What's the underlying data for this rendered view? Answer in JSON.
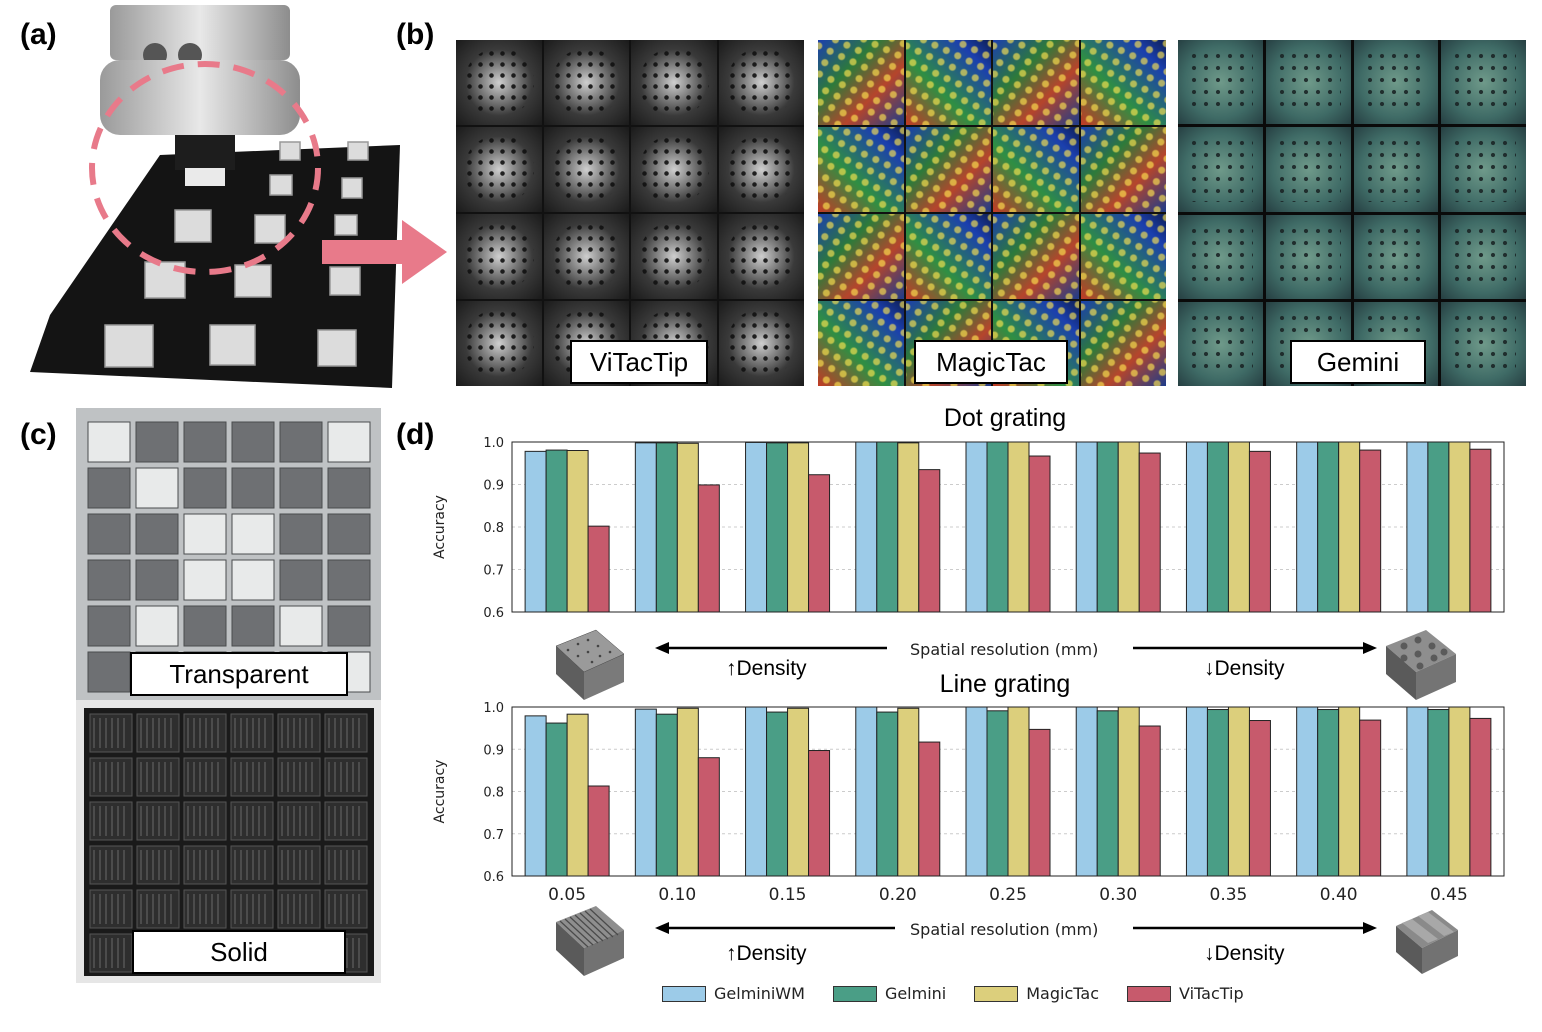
{
  "figure": {
    "panel_a": {
      "letter": "(a)"
    },
    "panel_b": {
      "letter": "(b)",
      "sensor_labels": [
        "ViTacTip",
        "MagicTac",
        "Gemini"
      ]
    },
    "panel_c": {
      "letter": "(c)",
      "top_label": "Transparent",
      "bottom_label": "Solid"
    },
    "panel_d": {
      "letter": "(d)"
    },
    "colors": {
      "GelminiWM": "#9ccbe8",
      "Gelmini": "#4a9e86",
      "MagicTac": "#dccf7c",
      "ViTacTip": "#c75a6c",
      "pink_accent": "#e87a8a"
    },
    "icons": [
      "robot-gripper-photo-icon",
      "arrow-right-icon",
      "dot-grating-sample-icon",
      "line-grating-sample-icon"
    ]
  },
  "chart_data": [
    {
      "type": "bar",
      "title": "Dot grating",
      "categories": [
        "0.05",
        "0.10",
        "0.15",
        "0.20",
        "0.25",
        "0.30",
        "0.35",
        "0.40",
        "0.45"
      ],
      "series": [
        {
          "name": "GelminiWM",
          "values": [
            0.978,
            0.998,
            0.999,
            1.0,
            1.0,
            1.0,
            1.0,
            1.0,
            1.0
          ]
        },
        {
          "name": "Gelmini",
          "values": [
            0.981,
            0.998,
            0.998,
            1.0,
            1.0,
            1.0,
            1.0,
            1.0,
            1.0
          ]
        },
        {
          "name": "MagicTac",
          "values": [
            0.98,
            0.997,
            0.998,
            0.998,
            1.0,
            1.0,
            1.0,
            1.0,
            1.0
          ]
        },
        {
          "name": "ViTacTip",
          "values": [
            0.802,
            0.899,
            0.923,
            0.935,
            0.967,
            0.974,
            0.978,
            0.981,
            0.983
          ]
        }
      ],
      "xlabel": "Spatial resolution (mm)",
      "ylabel": "Accuracy",
      "ylim": [
        0.6,
        1.0
      ],
      "yticks": [
        "0.6",
        "0.7",
        "0.8",
        "0.9",
        "1.0"
      ],
      "grid": true,
      "density_left": "↑Density",
      "density_right": "↓Density"
    },
    {
      "type": "bar",
      "title": "Line grating",
      "categories": [
        "0.05",
        "0.10",
        "0.15",
        "0.20",
        "0.25",
        "0.30",
        "0.35",
        "0.40",
        "0.45"
      ],
      "series": [
        {
          "name": "GelminiWM",
          "values": [
            0.979,
            0.995,
            1.0,
            1.0,
            1.0,
            1.0,
            1.0,
            1.0,
            1.0
          ]
        },
        {
          "name": "Gelmini",
          "values": [
            0.962,
            0.983,
            0.988,
            0.988,
            0.991,
            0.991,
            0.994,
            0.994,
            0.994
          ]
        },
        {
          "name": "MagicTac",
          "values": [
            0.983,
            0.997,
            0.997,
            0.997,
            1.0,
            1.0,
            1.0,
            1.0,
            1.0
          ]
        },
        {
          "name": "ViTacTip",
          "values": [
            0.813,
            0.88,
            0.897,
            0.917,
            0.947,
            0.955,
            0.968,
            0.969,
            0.973
          ]
        }
      ],
      "xlabel": "Spatial resolution (mm)",
      "ylabel": "Accuracy",
      "ylim": [
        0.6,
        1.0
      ],
      "yticks": [
        "0.6",
        "0.7",
        "0.8",
        "0.9",
        "1.0"
      ],
      "xticks_shown": true,
      "grid": true,
      "density_left": "↑Density",
      "density_right": "↓Density",
      "legend": [
        "GelminiWM",
        "Gelmini",
        "MagicTac",
        "ViTacTip"
      ],
      "legend_placement": "bottom"
    }
  ]
}
